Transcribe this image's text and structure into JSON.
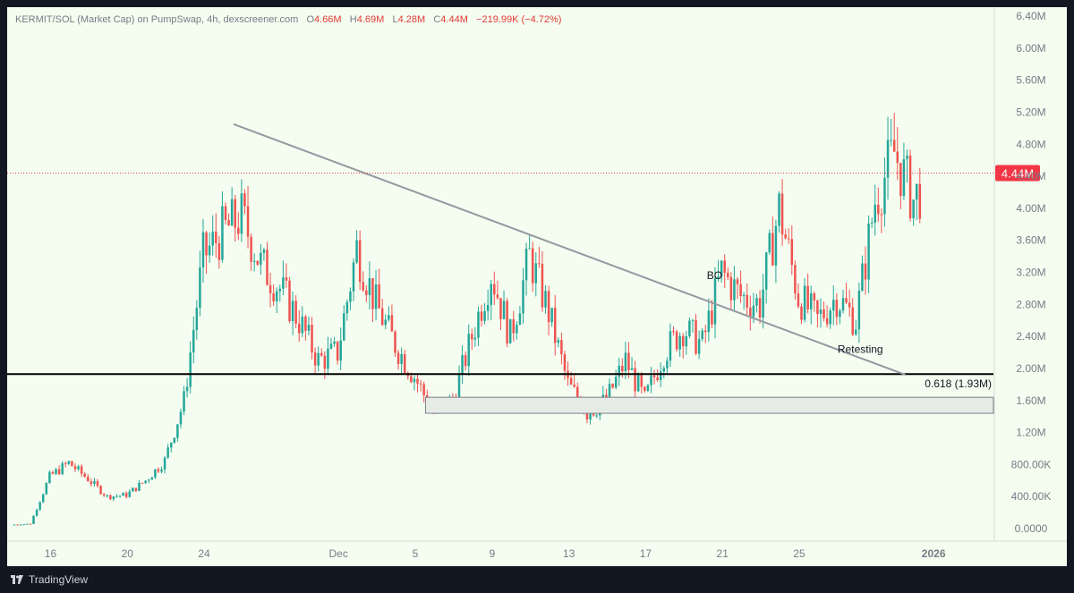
{
  "header": {
    "symbol": "KERMIT/SOL (Market Cap) on PumpSwap, 4h, dexscreener.com",
    "o_label": "O",
    "o_value": "4.66M",
    "h_label": "H",
    "h_value": "4.69M",
    "l_label": "L",
    "l_value": "4.28M",
    "c_label": "C",
    "c_value": "4.44M",
    "change": "−219.99K (−4.72%)"
  },
  "footer": {
    "brand": "TradingView",
    "logo_icon": "tradingview-logo-icon"
  },
  "colors": {
    "up": "#26a69a",
    "down": "#ef5350",
    "price_tag": "#f23645",
    "trendline": "#9598a1",
    "level_line": "#000000",
    "zone_fill": "#e6ebe6",
    "zone_border": "#7b7f8a"
  },
  "chart_data": {
    "type": "candlestick",
    "interval": "4h",
    "y_axis_ticks": [
      "6.40M",
      "6.00M",
      "5.60M",
      "5.20M",
      "4.80M",
      "4.40M",
      "4.00M",
      "3.60M",
      "3.20M",
      "2.80M",
      "2.40M",
      "2.00M",
      "1.60M",
      "1.20M",
      "800.00K",
      "400.00K",
      "0.0000"
    ],
    "ylim": [
      0,
      6400000
    ],
    "x_axis_ticks": [
      "16",
      "20",
      "24",
      "Dec",
      "5",
      "9",
      "13",
      "17",
      "21",
      "25",
      "2026",
      "16"
    ],
    "current_price": 4440000,
    "current_price_label": "4.44M",
    "level_label": "0.618 (1.93M)",
    "level_value": 1930000,
    "zone_range": [
      1440000,
      1640000
    ],
    "annotations": [
      "BO",
      "Retesting"
    ],
    "trendline": {
      "from": [
        "Nov 26",
        5050000
      ],
      "to": [
        "Dec 31",
        1920000
      ]
    },
    "series": [
      {
        "date": "Nov 15",
        "close": 60000
      },
      {
        "date": "Nov 16",
        "close": 650000
      },
      {
        "date": "Nov 17",
        "close": 820000
      },
      {
        "date": "Nov 18",
        "close": 620000
      },
      {
        "date": "Nov 19",
        "close": 400000
      },
      {
        "date": "Nov 20",
        "close": 420000
      },
      {
        "date": "Nov 21",
        "close": 600000
      },
      {
        "date": "Nov 22",
        "close": 850000
      },
      {
        "date": "Nov 23",
        "close": 1600000
      },
      {
        "date": "Nov 24",
        "close": 3400000
      },
      {
        "date": "Nov 25",
        "close": 3700000
      },
      {
        "date": "Nov 26",
        "close": 3900000
      },
      {
        "date": "Nov 27",
        "close": 3300000
      },
      {
        "date": "Nov 28",
        "close": 3000000
      },
      {
        "date": "Nov 29",
        "close": 2600000
      },
      {
        "date": "Nov 30",
        "close": 2100000
      },
      {
        "date": "Dec 1",
        "close": 2200000
      },
      {
        "date": "Dec 2",
        "close": 3500000
      },
      {
        "date": "Dec 3",
        "close": 2800000
      },
      {
        "date": "Dec 4",
        "close": 2300000
      },
      {
        "date": "Dec 5",
        "close": 1900000
      },
      {
        "date": "Dec 6",
        "close": 1450000
      },
      {
        "date": "Dec 7",
        "close": 1600000
      },
      {
        "date": "Dec 8",
        "close": 2400000
      },
      {
        "date": "Dec 9",
        "close": 3200000
      },
      {
        "date": "Dec 10",
        "close": 2400000
      },
      {
        "date": "Dec 11",
        "close": 3400000
      },
      {
        "date": "Dec 12",
        "close": 2700000
      },
      {
        "date": "Dec 13",
        "close": 1800000
      },
      {
        "date": "Dec 14",
        "close": 1450000
      },
      {
        "date": "Dec 15",
        "close": 1600000
      },
      {
        "date": "Dec 16",
        "close": 2100000
      },
      {
        "date": "Dec 17",
        "close": 1600000
      },
      {
        "date": "Dec 18",
        "close": 2200000
      },
      {
        "date": "Dec 19",
        "close": 2500000
      },
      {
        "date": "Dec 20",
        "close": 2300000
      },
      {
        "date": "Dec 21",
        "close": 3200000
      },
      {
        "date": "Dec 22",
        "close": 2900000
      },
      {
        "date": "Dec 23",
        "close": 2800000
      },
      {
        "date": "Dec 24",
        "close": 4000000
      },
      {
        "date": "Dec 25",
        "close": 2900000
      },
      {
        "date": "Dec 26",
        "close": 2600000
      },
      {
        "date": "Dec 27",
        "close": 2900000
      },
      {
        "date": "Dec 28",
        "close": 2600000
      },
      {
        "date": "Dec 29",
        "close": 4100000
      },
      {
        "date": "Dec 30",
        "close": 4700000
      },
      {
        "date": "Dec 31",
        "close": 4100000
      },
      {
        "date": "Jan 1",
        "close": 4440000
      }
    ]
  }
}
